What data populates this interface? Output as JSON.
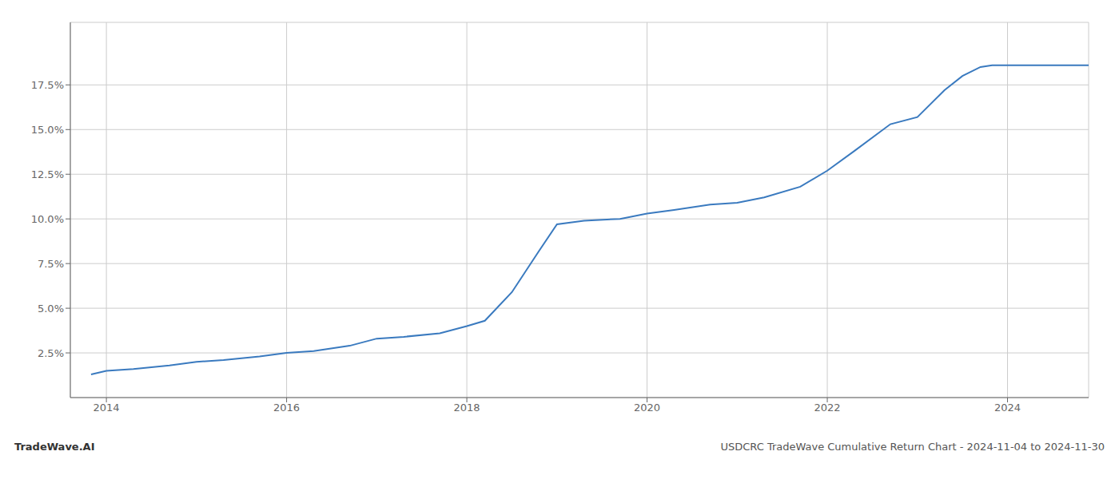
{
  "chart_data": {
    "type": "line",
    "title": "USDCRC TradeWave Cumulative Return Chart - 2024-11-04 to 2024-11-30",
    "annotations": [
      "TradeWave.AI"
    ],
    "x": [
      2013.83,
      2014.0,
      2014.3,
      2014.7,
      2015.0,
      2015.3,
      2015.7,
      2016.0,
      2016.3,
      2016.7,
      2017.0,
      2017.3,
      2017.7,
      2018.0,
      2018.2,
      2018.5,
      2018.8,
      2019.0,
      2019.3,
      2019.7,
      2020.0,
      2020.3,
      2020.7,
      2021.0,
      2021.3,
      2021.7,
      2022.0,
      2022.3,
      2022.7,
      2023.0,
      2023.3,
      2023.5,
      2023.7,
      2023.83,
      2024.0,
      2024.3,
      2024.6,
      2024.9
    ],
    "values": [
      0.013,
      0.015,
      0.016,
      0.018,
      0.02,
      0.021,
      0.023,
      0.025,
      0.026,
      0.029,
      0.033,
      0.034,
      0.036,
      0.04,
      0.043,
      0.059,
      0.082,
      0.097,
      0.099,
      0.1,
      0.103,
      0.105,
      0.108,
      0.109,
      0.112,
      0.118,
      0.127,
      0.138,
      0.153,
      0.157,
      0.172,
      0.18,
      0.185,
      0.186,
      0.186,
      0.186,
      0.186,
      0.186
    ],
    "color": "#3a7abf",
    "xlim": [
      2013.6,
      2024.9
    ],
    "xticks": [
      2014,
      2016,
      2018,
      2020,
      2022,
      2024
    ],
    "ylim": [
      0.0,
      0.21
    ],
    "yticks": [
      {
        "value": 0.025,
        "label": "2.5%"
      },
      {
        "value": 0.05,
        "label": "5.0%"
      },
      {
        "value": 0.075,
        "label": "7.5%"
      },
      {
        "value": 0.1,
        "label": "10.0%"
      },
      {
        "value": 0.125,
        "label": "12.5%"
      },
      {
        "value": 0.15,
        "label": "15.0%"
      },
      {
        "value": 0.175,
        "label": "17.5%"
      }
    ],
    "grid": true
  }
}
